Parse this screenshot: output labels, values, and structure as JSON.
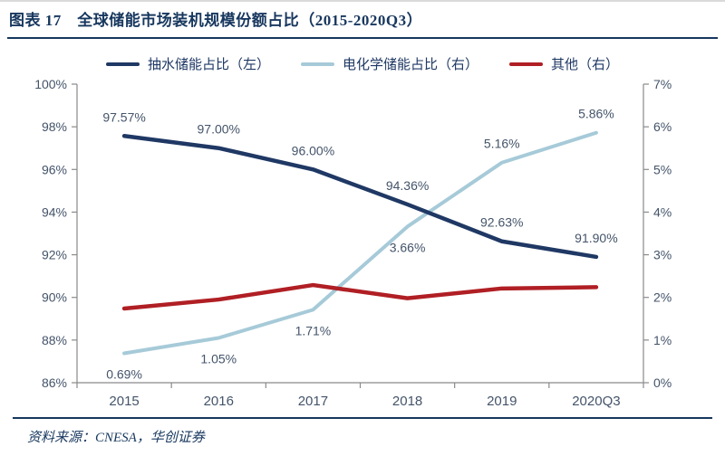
{
  "page": {
    "title": "图表 17　全球储能市场装机规模份额占比（2015-2020Q3）",
    "source": "资料来源：CNESA，华创证券"
  },
  "colors": {
    "title_navy": "#17375E",
    "axis_text": "#44546A",
    "axis_line": "#8a8a8a",
    "pumped": "#1F3864",
    "electrochemical": "#A6CAD8",
    "other": "#B01F24"
  },
  "legend": {
    "items": [
      {
        "label": "抽水储能占比（左）",
        "color": "#1F3864"
      },
      {
        "label": "电化学储能占比（右）",
        "color": "#A6CAD8"
      },
      {
        "label": "其他（右）",
        "color": "#B01F24"
      }
    ]
  },
  "chart_data": {
    "type": "line",
    "title": "全球储能市场装机规模份额占比（2015-2020Q3）",
    "categories": [
      "2015",
      "2016",
      "2017",
      "2018",
      "2019",
      "2020Q3"
    ],
    "grid": false,
    "legend_position": "top",
    "left_axis": {
      "min": 86,
      "max": 100,
      "step": 2,
      "tick_labels": [
        "86%",
        "88%",
        "90%",
        "92%",
        "94%",
        "96%",
        "98%",
        "100%"
      ]
    },
    "right_axis": {
      "min": 0,
      "max": 7,
      "step": 1,
      "tick_labels": [
        "0%",
        "1%",
        "2%",
        "3%",
        "4%",
        "5%",
        "6%",
        "7%"
      ]
    },
    "series": [
      {
        "name": "抽水储能占比（左）",
        "axis": "left",
        "color": "#1F3864",
        "values": [
          97.57,
          97.0,
          96.0,
          94.36,
          92.63,
          91.9
        ],
        "data_labels": [
          {
            "text": "97.57%",
            "pos": "above"
          },
          {
            "text": "97.00%",
            "pos": "above"
          },
          {
            "text": "96.00%",
            "pos": "above"
          },
          {
            "text": "94.36%",
            "pos": "above"
          },
          {
            "text": "92.63%",
            "pos": "above"
          },
          {
            "text": "91.90%",
            "pos": "above"
          }
        ]
      },
      {
        "name": "电化学储能占比（右）",
        "axis": "right",
        "color": "#A6CAD8",
        "values": [
          0.69,
          1.05,
          1.71,
          3.66,
          5.16,
          5.86
        ],
        "data_labels": [
          {
            "text": "0.69%",
            "pos": "below"
          },
          {
            "text": "1.05%",
            "pos": "below"
          },
          {
            "text": "1.71%",
            "pos": "below"
          },
          {
            "text": "3.66%",
            "pos": "below"
          },
          {
            "text": "5.16%",
            "pos": "above"
          },
          {
            "text": "5.86%",
            "pos": "above"
          }
        ]
      },
      {
        "name": "其他（右）",
        "axis": "right",
        "color": "#B01F24",
        "values": [
          1.74,
          1.95,
          2.29,
          1.98,
          2.21,
          2.24
        ],
        "data_labels": null
      }
    ]
  }
}
